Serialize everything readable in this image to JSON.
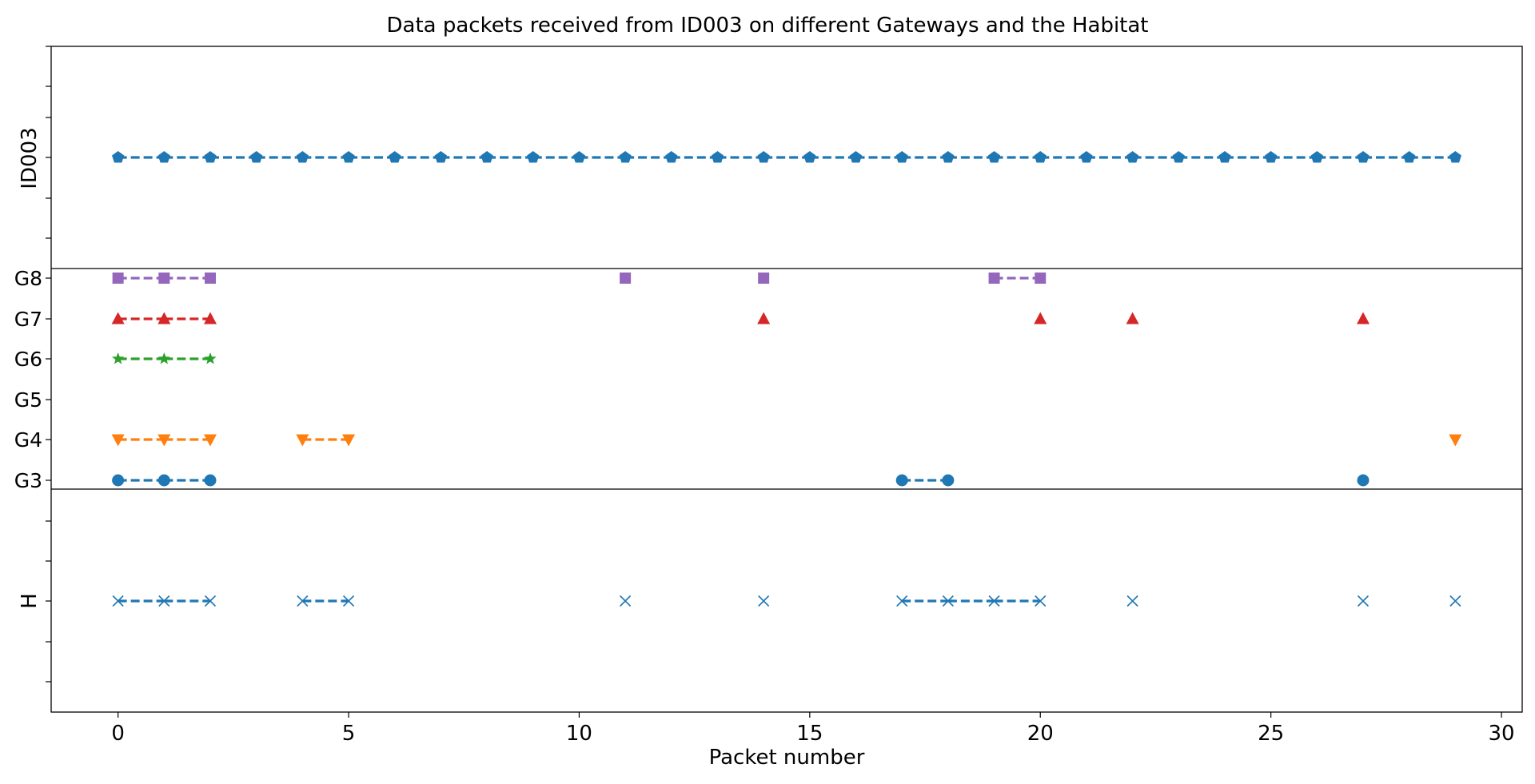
{
  "chart_data": {
    "type": "scatter",
    "title": "Data packets received from ID003 on different Gateways and the Habitat",
    "xlabel": "Packet number",
    "xlim": [
      -1.45,
      30.45
    ],
    "xticks": [
      0,
      5,
      10,
      15,
      20,
      25,
      30
    ],
    "panels": [
      {
        "key": "top",
        "ylabel": "ID003",
        "series": [
          {
            "marker": "pentagon",
            "color": "#1f77b4",
            "y_row": "ID003",
            "x": [
              0,
              1,
              2,
              3,
              4,
              5,
              6,
              7,
              8,
              9,
              10,
              11,
              12,
              13,
              14,
              15,
              16,
              17,
              18,
              19,
              20,
              21,
              22,
              23,
              24,
              25,
              26,
              27,
              28,
              29
            ]
          }
        ]
      },
      {
        "key": "gateways",
        "yticklabels": [
          "G3",
          "G4",
          "G5",
          "G6",
          "G7",
          "G8"
        ],
        "series": [
          {
            "y_row": "G8",
            "marker": "square",
            "color": "#9467bd",
            "x": [
              0,
              1,
              2,
              11,
              14,
              19,
              20
            ]
          },
          {
            "y_row": "G7",
            "marker": "triangle-up",
            "color": "#d62728",
            "x": [
              0,
              1,
              2,
              14,
              20,
              22,
              27
            ]
          },
          {
            "y_row": "G6",
            "marker": "star",
            "color": "#2ca02c",
            "x": [
              0,
              1,
              2
            ]
          },
          {
            "y_row": "G4",
            "marker": "triangle-down",
            "color": "#ff7f0e",
            "x": [
              0,
              1,
              2,
              4,
              5,
              29
            ]
          },
          {
            "y_row": "G3",
            "marker": "circle",
            "color": "#1f77b4",
            "x": [
              0,
              1,
              2,
              17,
              18,
              27
            ]
          }
        ]
      },
      {
        "key": "bottom",
        "ylabel": "H",
        "series": [
          {
            "y_row": "H",
            "marker": "x",
            "color": "#1f77b4",
            "x": [
              0,
              1,
              2,
              4,
              5,
              11,
              14,
              17,
              18,
              19,
              20,
              22,
              27,
              29
            ]
          }
        ]
      }
    ]
  }
}
